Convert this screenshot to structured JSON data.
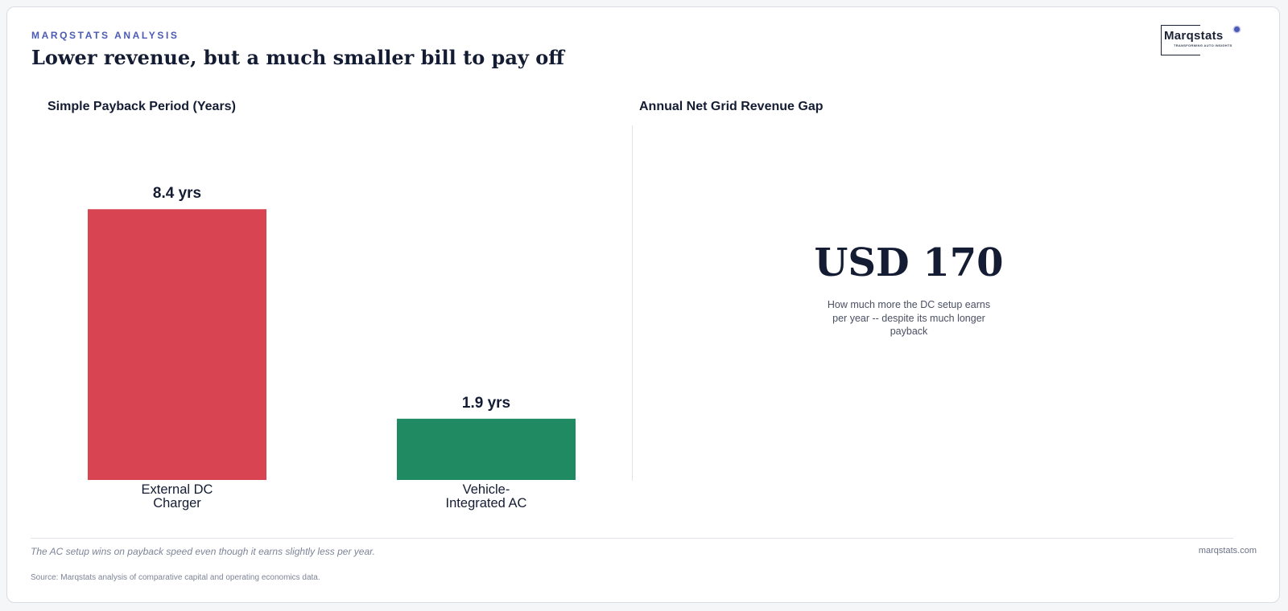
{
  "header": {
    "kicker": "MARQSTATS ANALYSIS",
    "title": "Lower revenue, but a much smaller bill to pay off"
  },
  "logo": {
    "name": "Marqstats",
    "tagline": "TRANSFORMING AUTO INSIGHTS"
  },
  "chart_data": [
    {
      "type": "bar",
      "title": "Simple Payback Period (Years)",
      "categories": [
        "External DC Charger",
        "Vehicle-Integrated AC"
      ],
      "category_lines": [
        [
          "External DC",
          "Charger"
        ],
        [
          "Vehicle-",
          "Integrated AC"
        ]
      ],
      "values": [
        8.4,
        1.9
      ],
      "value_labels": [
        "8.4 yrs",
        "1.9 yrs"
      ],
      "colors": [
        "#d94452",
        "#208a62"
      ],
      "ylim": [
        0,
        11
      ],
      "grid": false,
      "legend": false
    },
    {
      "type": "table",
      "title": "Annual Net Grid Revenue Gap",
      "value": "USD 170",
      "caption": "How much more the DC setup earns per year -- despite its much longer payback"
    }
  ],
  "footer": {
    "note": "The AC setup wins on payback speed even though it earns slightly less per year.",
    "site": "marqstats.com",
    "source": "Source: Marqstats analysis of comparative capital and operating economics data."
  }
}
